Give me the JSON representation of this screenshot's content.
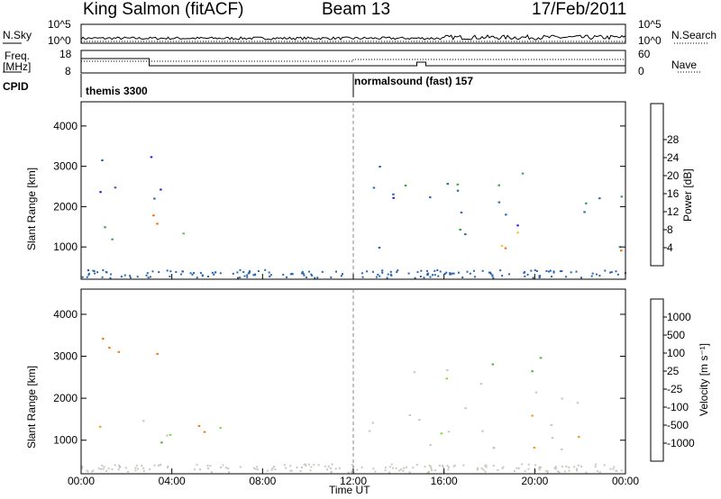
{
  "header": {
    "station": "King Salmon (fitACF)",
    "beam": "Beam 13",
    "date": "17/Feb/2011"
  },
  "sky_panel": {
    "left_label": "N.Sky",
    "right_label": "N.Search",
    "left_ticks": [
      "10^5",
      "10^0"
    ],
    "right_ticks": [
      "10^5",
      "10^0"
    ]
  },
  "freq_panel": {
    "left_label_line1": "Freq.",
    "left_label_line2": "[MHz]",
    "right_label": "Nave",
    "left_ticks": [
      "18",
      "8"
    ],
    "right_ticks": [
      "60",
      "0"
    ]
  },
  "cpid": {
    "label": "CPID",
    "entries": [
      {
        "text": "themis 3300",
        "start_hour": 0
      },
      {
        "text": "normalsound (fast) 157",
        "start_hour": 12
      }
    ]
  },
  "chart_data": [
    {
      "type": "heatmap",
      "title": "Power",
      "ylabel": "Slant Range [km]",
      "xlabel": "Time UT",
      "xlim": [
        0,
        24
      ],
      "ylim": [
        200,
        4600
      ],
      "xticks": [
        "00:00",
        "04:00",
        "08:00",
        "12:00",
        "16:00",
        "20:00",
        "00:00"
      ],
      "yticks": [
        "1000",
        "2000",
        "3000",
        "4000"
      ],
      "colorbar": {
        "label": "Power [dB]",
        "ticks": [
          "4",
          "8",
          "12",
          "16",
          "20",
          "24",
          "28"
        ],
        "colors": [
          "#1e1ee6",
          "#2864b4",
          "#32a050",
          "#50c850",
          "#e6c828",
          "#f08c14",
          "#ff6400",
          "#e61e00",
          "#b40000"
        ]
      },
      "regions": [
        {
          "x": [
            0.3,
            2.9
          ],
          "y": [
            1100,
            1700
          ],
          "value": 10
        },
        {
          "x": [
            2.8,
            4.3
          ],
          "y": [
            950,
            1900
          ],
          "value": 22
        },
        {
          "x": [
            4.2,
            6.5
          ],
          "y": [
            1200,
            1700
          ],
          "value": 12
        },
        {
          "x": [
            0.8,
            4.6
          ],
          "y": [
            2200,
            3600
          ],
          "value": 4
        },
        {
          "x": [
            12.6,
            17.6
          ],
          "y": [
            900,
            3200
          ],
          "value": 5
        },
        {
          "x": [
            17.5,
            24.0
          ],
          "y": [
            1000,
            1400
          ],
          "value": 15
        },
        {
          "x": [
            18.5,
            24.0
          ],
          "y": [
            850,
            1150
          ],
          "value": 27
        },
        {
          "x": [
            17.8,
            24.0
          ],
          "y": [
            1500,
            2500
          ],
          "value": 6
        },
        {
          "x": [
            18.0,
            20.2
          ],
          "y": [
            2500,
            3300
          ],
          "value": 10
        }
      ]
    },
    {
      "type": "heatmap",
      "title": "Velocity",
      "ylabel": "Slant Range [km]",
      "xlabel": "Time UT",
      "xlim": [
        0,
        24
      ],
      "ylim": [
        200,
        4600
      ],
      "xticks": [
        "00:00",
        "04:00",
        "08:00",
        "12:00",
        "16:00",
        "20:00",
        "00:00"
      ],
      "yticks": [
        "1000",
        "2000",
        "3000",
        "4000"
      ],
      "colorbar": {
        "label": "Velocity [m s⁻¹]",
        "ticks": [
          "1000",
          "500",
          "100",
          "25",
          "-25",
          "-100",
          "-500",
          "-1000"
        ],
        "colors": [
          "#1e3cc8",
          "#2d8c46",
          "#46b432",
          "#78dc3c",
          "#c8c8c0",
          "#e6a028",
          "#f07814",
          "#e62814",
          "#ff0000"
        ]
      },
      "regions": [
        {
          "x": [
            0.3,
            4.5
          ],
          "y": [
            1100,
            1700
          ],
          "value": 0
        },
        {
          "x": [
            3.0,
            6.2
          ],
          "y": [
            650,
            1400
          ],
          "value": 90
        },
        {
          "x": [
            4.5,
            6.8
          ],
          "y": [
            1100,
            1700
          ],
          "value": -200
        },
        {
          "x": [
            0.8,
            4.5
          ],
          "y": [
            2500,
            3500
          ],
          "value": -300
        },
        {
          "x": [
            12.5,
            17.8
          ],
          "y": [
            900,
            3100
          ],
          "value": 0
        },
        {
          "x": [
            17.5,
            24.0
          ],
          "y": [
            800,
            2300
          ],
          "value": 0
        },
        {
          "x": [
            18.0,
            20.5
          ],
          "y": [
            2000,
            3200
          ],
          "value": 120
        }
      ]
    }
  ]
}
